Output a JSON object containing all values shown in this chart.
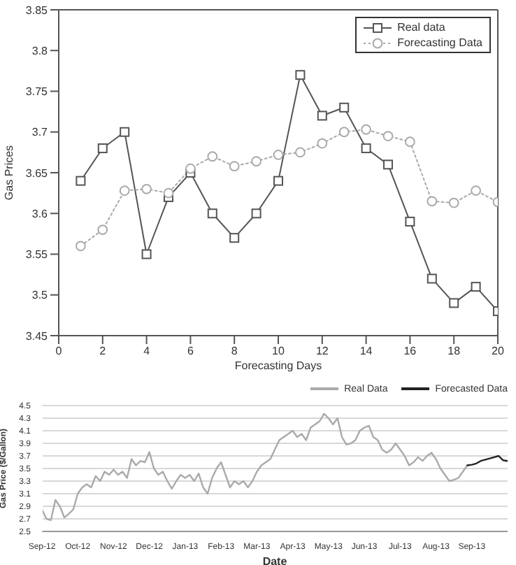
{
  "chart_data": [
    {
      "type": "line",
      "xlabel": "Forecasting Days",
      "ylabel": "Gas Prices",
      "x": [
        1,
        2,
        3,
        4,
        5,
        6,
        7,
        8,
        9,
        10,
        11,
        12,
        13,
        14,
        15,
        16,
        17,
        18,
        19,
        20
      ],
      "xlim": [
        0,
        20
      ],
      "xticks": [
        0,
        2,
        4,
        6,
        8,
        10,
        12,
        14,
        16,
        18,
        20
      ],
      "ylim": [
        3.45,
        3.85
      ],
      "yticks": [
        3.45,
        3.5,
        3.55,
        3.6,
        3.65,
        3.7,
        3.75,
        3.8,
        3.85
      ],
      "grid": false,
      "legend": "top right",
      "series": [
        {
          "name": "Real data",
          "color": "#555555",
          "marker": "square",
          "line_style": "solid",
          "values": [
            3.64,
            3.68,
            3.7,
            3.55,
            3.62,
            3.65,
            3.6,
            3.57,
            3.6,
            3.64,
            3.77,
            3.72,
            3.73,
            3.68,
            3.66,
            3.59,
            3.52,
            3.49,
            3.51,
            3.48
          ]
        },
        {
          "name": "Forecasting Data",
          "color": "#aaaaaa",
          "marker": "circle",
          "line_style": "dotted",
          "values": [
            3.56,
            3.58,
            3.628,
            3.63,
            3.625,
            3.655,
            3.67,
            3.658,
            3.664,
            3.672,
            3.675,
            3.686,
            3.7,
            3.703,
            3.695,
            3.688,
            3.615,
            3.613,
            3.628,
            3.614
          ]
        }
      ]
    },
    {
      "type": "line",
      "xlabel": "Date",
      "ylabel": "Gas Price ($/Gallon)",
      "ylim": [
        2.5,
        4.5
      ],
      "yticks": [
        2.5,
        2.7,
        2.9,
        3.1,
        3.3,
        3.5,
        3.7,
        3.9,
        4.1,
        4.3,
        4.5
      ],
      "grid": "y",
      "legend": "top right",
      "marker": "none",
      "categories": [
        "Sep-12",
        null,
        null,
        null,
        null,
        null,
        null,
        null,
        "Oct-12",
        null,
        null,
        null,
        null,
        null,
        null,
        null,
        "Nov-12",
        null,
        null,
        null,
        null,
        null,
        null,
        null,
        "Dec-12",
        null,
        null,
        null,
        null,
        null,
        null,
        null,
        "Jan-13",
        null,
        null,
        null,
        null,
        null,
        null,
        null,
        "Feb-13",
        null,
        null,
        null,
        null,
        null,
        null,
        null,
        "Mar-13",
        null,
        null,
        null,
        null,
        null,
        null,
        null,
        "Apr-13",
        null,
        null,
        null,
        null,
        null,
        null,
        null,
        "May-13",
        null,
        null,
        null,
        null,
        null,
        null,
        null,
        "Jun-13",
        null,
        null,
        null,
        null,
        null,
        null,
        null,
        "Jul-13",
        null,
        null,
        null,
        null,
        null,
        null,
        null,
        "Aug-13",
        null,
        null,
        null,
        null,
        null,
        null,
        null,
        "Sep-13",
        null,
        null,
        null,
        null,
        null,
        null,
        null,
        null
      ],
      "series": [
        {
          "name": "Real Data",
          "color": "#aaaaaa",
          "values": [
            2.85,
            2.7,
            2.68,
            3.0,
            2.9,
            2.72,
            2.78,
            2.85,
            3.1,
            3.2,
            3.25,
            3.2,
            3.38,
            3.3,
            3.45,
            3.4,
            3.48,
            3.4,
            3.45,
            3.35,
            3.65,
            3.55,
            3.62,
            3.6,
            3.76,
            3.5,
            3.4,
            3.45,
            3.3,
            3.18,
            3.3,
            3.4,
            3.35,
            3.4,
            3.3,
            3.42,
            3.2,
            3.1,
            3.35,
            3.5,
            3.6,
            3.4,
            3.2,
            3.3,
            3.25,
            3.3,
            3.2,
            3.3,
            3.45,
            3.55,
            3.6,
            3.65,
            3.8,
            3.95,
            4.0,
            4.05,
            4.1,
            4.0,
            4.05,
            3.95,
            4.15,
            4.2,
            4.25,
            4.37,
            4.3,
            4.2,
            4.3,
            4.0,
            3.88,
            3.9,
            3.95,
            4.1,
            4.15,
            4.18,
            4.0,
            3.95,
            3.8,
            3.75,
            3.8,
            3.9,
            3.8,
            3.7,
            3.55,
            3.6,
            3.68,
            3.62,
            3.7,
            3.75,
            3.65,
            3.5,
            3.4,
            3.3,
            3.32,
            3.35,
            3.45,
            3.55,
            null,
            null,
            null,
            null,
            null,
            null,
            null,
            null,
            null
          ]
        },
        {
          "name": "Forecasted Data",
          "color": "#222222",
          "values": [
            null,
            null,
            null,
            null,
            null,
            null,
            null,
            null,
            null,
            null,
            null,
            null,
            null,
            null,
            null,
            null,
            null,
            null,
            null,
            null,
            null,
            null,
            null,
            null,
            null,
            null,
            null,
            null,
            null,
            null,
            null,
            null,
            null,
            null,
            null,
            null,
            null,
            null,
            null,
            null,
            null,
            null,
            null,
            null,
            null,
            null,
            null,
            null,
            null,
            null,
            null,
            null,
            null,
            null,
            null,
            null,
            null,
            null,
            null,
            null,
            null,
            null,
            null,
            null,
            null,
            null,
            null,
            null,
            null,
            null,
            null,
            null,
            null,
            null,
            null,
            null,
            null,
            null,
            null,
            null,
            null,
            null,
            null,
            null,
            null,
            null,
            null,
            null,
            null,
            null,
            null,
            null,
            null,
            null,
            null,
            3.55,
            3.56,
            3.58,
            3.62,
            3.64,
            3.66,
            3.68,
            3.7,
            3.63,
            3.62
          ]
        }
      ]
    }
  ]
}
